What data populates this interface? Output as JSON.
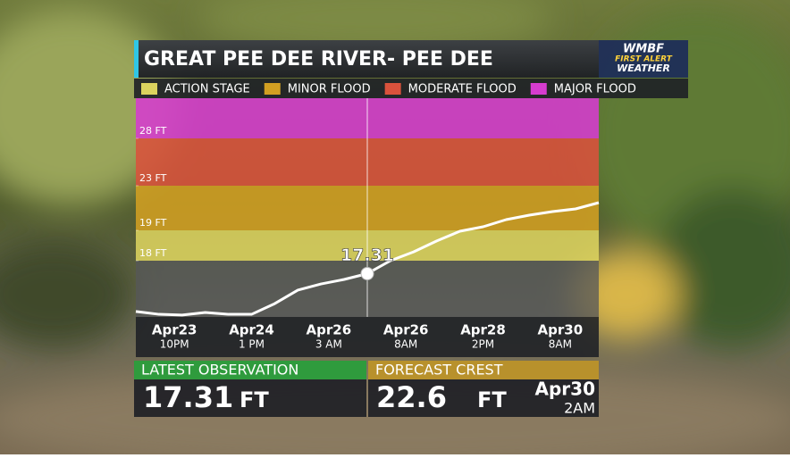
{
  "branding": {
    "line1": "WMBF",
    "line2": "FIRST ALERT",
    "line3": "WEATHER"
  },
  "chart_data": {
    "type": "line",
    "title": "GREAT PEE DEE RIVER- PEE DEE",
    "stages": [
      {
        "name": "ACTION STAGE",
        "color": "#dcd35e",
        "from": 18
      },
      {
        "name": "MINOR FLOOD",
        "color": "#d29f22",
        "from": 19
      },
      {
        "name": "MODERATE FLOOD",
        "color": "#d9523c",
        "from": 23
      },
      {
        "name": "MAJOR FLOOD",
        "color": "#d63ccf",
        "from": 28
      }
    ],
    "ylim": [
      15,
      31
    ],
    "yticks": [
      {
        "value": 18,
        "label": "18 FT"
      },
      {
        "value": 19,
        "label": "19 FT"
      },
      {
        "value": 23,
        "label": "23 FT"
      },
      {
        "value": 28,
        "label": "28 FT"
      }
    ],
    "x_labels": [
      {
        "date": "Apr23",
        "time": "10PM"
      },
      {
        "date": "Apr24",
        "time": "1 PM"
      },
      {
        "date": "Apr26",
        "time": "3 AM"
      },
      {
        "date": "Apr26",
        "time": "8AM"
      },
      {
        "date": "Apr28",
        "time": "2PM"
      },
      {
        "date": "Apr30",
        "time": "8AM"
      }
    ],
    "series": [
      {
        "color": "#ffffff",
        "values": [
          15.29,
          15.14,
          15.1,
          15.24,
          15.14,
          15.14,
          15.71,
          16.43,
          16.76,
          17.0,
          17.31,
          18.0,
          18.29,
          18.65,
          18.97,
          19.32,
          19.96,
          20.36,
          20.68,
          20.92,
          21.48
        ]
      }
    ]
  },
  "latest_observation": {
    "label": "LATEST OBSERVATION",
    "value": 17.31,
    "unit": "FT"
  },
  "forecast_crest": {
    "label": "FORECAST CREST",
    "value": 22.6,
    "unit": "FT",
    "date": "Apr30",
    "time": "2AM"
  }
}
